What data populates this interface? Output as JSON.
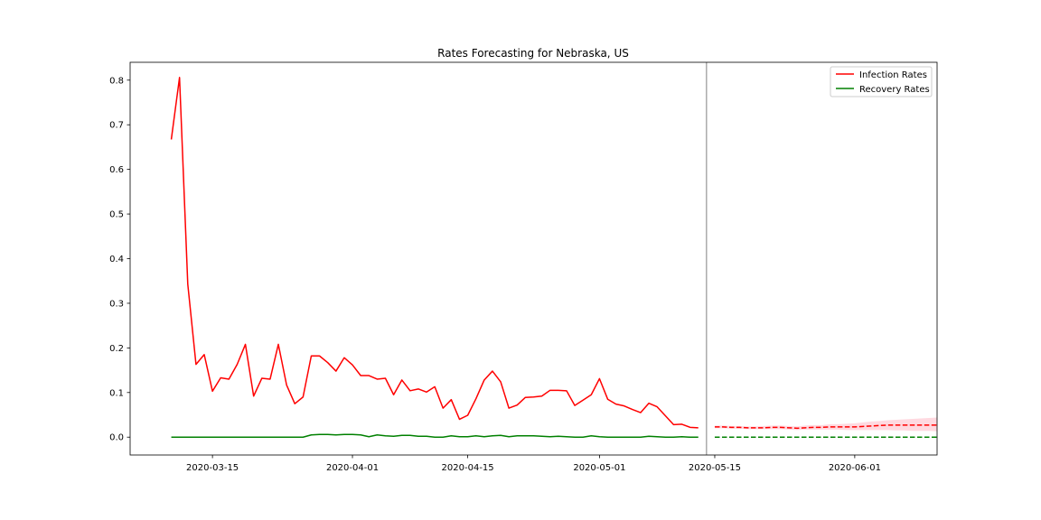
{
  "chart_data": {
    "type": "line",
    "title": "Rates Forecasting for Nebraska, US",
    "xlabel": "",
    "ylabel": "",
    "xlim": [
      "2020-03-05",
      "2020-06-11"
    ],
    "ylim": [
      -0.04,
      0.84
    ],
    "x_ticks": [
      "2020-03-15",
      "2020-04-01",
      "2020-04-15",
      "2020-05-01",
      "2020-05-15",
      "2020-06-01"
    ],
    "y_ticks": [
      0.0,
      0.1,
      0.2,
      0.3,
      0.4,
      0.5,
      0.6,
      0.7,
      0.8
    ],
    "y_tick_labels": [
      "0.0",
      "0.1",
      "0.2",
      "0.3",
      "0.4",
      "0.5",
      "0.6",
      "0.7",
      "0.8"
    ],
    "grid": false,
    "legend_position": "top-right",
    "forecast_start": "2020-05-14",
    "start_date": "2020-03-10",
    "colors": {
      "infection": "#ff0000",
      "recovery": "#008000",
      "band": "#ffc0cb",
      "divider": "#808080"
    },
    "series": [
      {
        "name": "Infection Rates",
        "key": "infection",
        "style": "solid",
        "values": [
          0.667,
          0.806,
          0.343,
          0.163,
          0.185,
          0.103,
          0.133,
          0.13,
          0.163,
          0.208,
          0.092,
          0.132,
          0.13,
          0.208,
          0.117,
          0.075,
          0.09,
          0.182,
          0.182,
          0.167,
          0.148,
          0.178,
          0.162,
          0.138,
          0.138,
          0.13,
          0.132,
          0.095,
          0.128,
          0.104,
          0.108,
          0.101,
          0.113,
          0.065,
          0.084,
          0.04,
          0.049,
          0.086,
          0.128,
          0.148,
          0.124,
          0.065,
          0.072,
          0.089,
          0.09,
          0.092,
          0.105,
          0.105,
          0.104,
          0.071,
          0.083,
          0.095,
          0.131,
          0.085,
          0.074,
          0.07,
          0.062,
          0.055,
          0.076,
          0.068,
          0.048,
          0.028,
          0.029,
          0.022,
          0.021
        ]
      },
      {
        "name": "Recovery Rates",
        "key": "recovery",
        "style": "solid",
        "values": [
          0.0,
          0.0,
          0.0,
          0.0,
          0.0,
          0.0,
          0.0,
          0.0,
          0.0,
          0.0,
          0.0,
          0.0,
          0.0,
          0.0,
          0.0,
          0.0,
          0.0,
          0.005,
          0.006,
          0.006,
          0.005,
          0.006,
          0.006,
          0.005,
          0.001,
          0.005,
          0.003,
          0.002,
          0.004,
          0.004,
          0.002,
          0.002,
          0.0,
          0.0,
          0.003,
          0.001,
          0.001,
          0.003,
          0.001,
          0.003,
          0.004,
          0.001,
          0.003,
          0.003,
          0.003,
          0.002,
          0.001,
          0.002,
          0.001,
          0.0,
          0.0,
          0.003,
          0.001,
          0.0,
          0.0,
          0.0,
          0.0,
          0.0,
          0.002,
          0.001,
          0.0,
          0.0,
          0.001,
          0.0,
          0.0
        ]
      },
      {
        "key": "infection_forecast",
        "style": "dashed",
        "start": "2020-05-15",
        "values": [
          0.023,
          0.023,
          0.022,
          0.022,
          0.021,
          0.021,
          0.021,
          0.022,
          0.022,
          0.021,
          0.02,
          0.021,
          0.022,
          0.022,
          0.023,
          0.023,
          0.023,
          0.023,
          0.024,
          0.025,
          0.026,
          0.027,
          0.027,
          0.027,
          0.027,
          0.027,
          0.027,
          0.027
        ]
      },
      {
        "key": "recovery_forecast",
        "style": "dashed",
        "start": "2020-05-15",
        "values": [
          0.0,
          0.0,
          0.0,
          0.0,
          0.0,
          0.0,
          0.0,
          0.0,
          0.0,
          0.0,
          0.0,
          0.0,
          0.0,
          0.0,
          0.0,
          0.0,
          0.0,
          0.0,
          0.0,
          0.0,
          0.0,
          0.0,
          0.0,
          0.0,
          0.0,
          0.0,
          0.0,
          0.0
        ]
      }
    ],
    "infection_band": {
      "start": "2020-05-15",
      "lower": [
        0.02,
        0.02,
        0.019,
        0.019,
        0.018,
        0.018,
        0.018,
        0.018,
        0.018,
        0.017,
        0.016,
        0.017,
        0.017,
        0.017,
        0.017,
        0.017,
        0.016,
        0.016,
        0.016,
        0.016,
        0.016,
        0.016,
        0.015,
        0.015,
        0.014,
        0.014,
        0.014,
        0.013
      ],
      "upper": [
        0.026,
        0.026,
        0.025,
        0.025,
        0.024,
        0.024,
        0.025,
        0.026,
        0.026,
        0.025,
        0.024,
        0.026,
        0.027,
        0.027,
        0.029,
        0.029,
        0.03,
        0.031,
        0.033,
        0.035,
        0.036,
        0.038,
        0.039,
        0.04,
        0.041,
        0.042,
        0.043,
        0.044
      ]
    }
  }
}
